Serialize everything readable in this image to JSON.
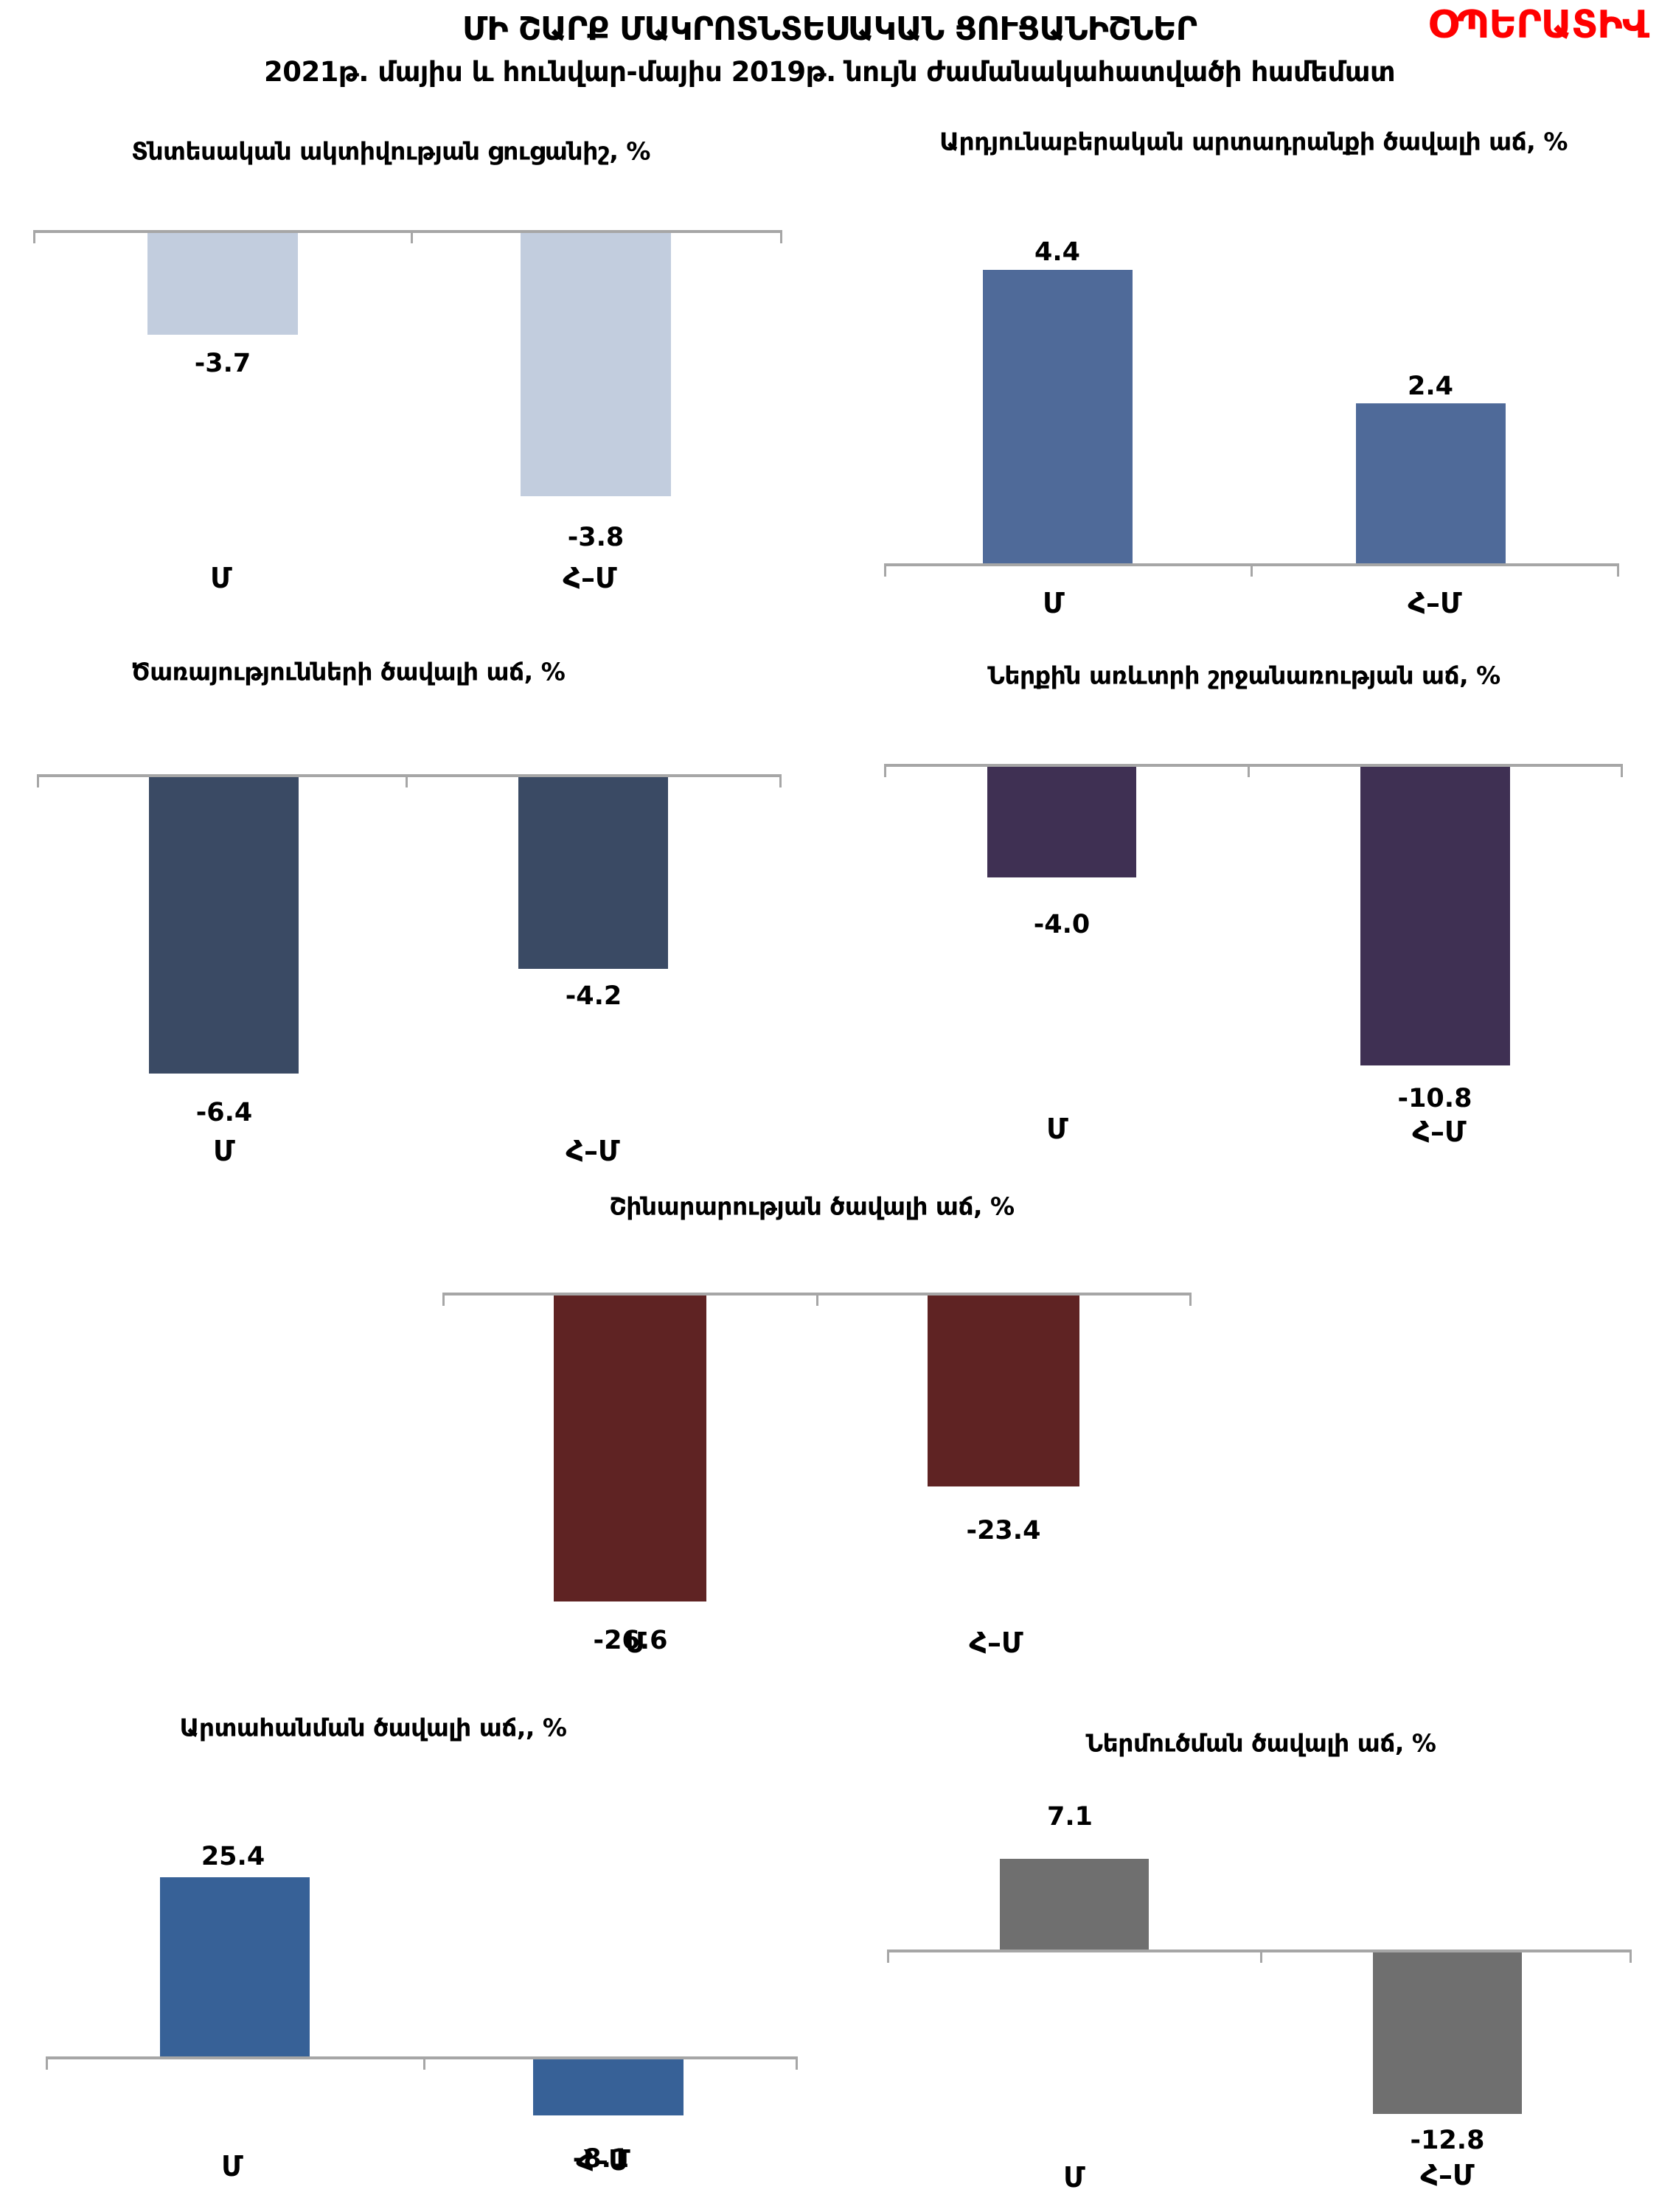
{
  "header": {
    "title": "ՄԻ ՇԱՐՔ ՄԱԿՐՈՏՆՏԵՍԱԿԱՆ ՑՈՒՑԱՆԻՇՆԵՐ",
    "subtitle": "2021թ. մայիս և հունվար-մայիս 2019թ. նույն ժամանակահատվածի համեմատ",
    "badge": "ՕՊԵՐԱՏԻՎ",
    "badge_color": "#ff0000"
  },
  "colors": {
    "axis": "#a6a6a6",
    "text": "#000000",
    "background": "#ffffff"
  },
  "chart_data": [
    {
      "type": "bar",
      "title": "Տնտեսական ակտիվության ցուցանիշ, %",
      "categories": [
        "Մ",
        "Հ–Մ"
      ],
      "values": [
        -3.7,
        -3.8
      ],
      "value_labels": [
        "-3.7",
        "-3.8"
      ],
      "bar_color": "#c2cdde",
      "grid": false,
      "legend": false
    },
    {
      "type": "bar",
      "title": "Արդյունաբերական արտադրանքի ծավալի աճ, %",
      "categories": [
        "Մ",
        "Հ–Մ"
      ],
      "values": [
        4.4,
        2.4
      ],
      "value_labels": [
        "4.4",
        "2.4"
      ],
      "bar_color": "#4f6a99",
      "grid": false,
      "legend": false
    },
    {
      "type": "bar",
      "title": "Ծառայությունների ծավալի աճ, %",
      "categories": [
        "Մ",
        "Հ–Մ"
      ],
      "values": [
        -6.4,
        -4.2
      ],
      "value_labels": [
        "-6.4",
        "-4.2"
      ],
      "bar_color": "#3a4a64",
      "grid": false,
      "legend": false
    },
    {
      "type": "bar",
      "title": "Ներքին առևտրի շրջանառության աճ, %",
      "categories": [
        "Մ",
        "Հ–Մ"
      ],
      "values": [
        -4.0,
        -10.8
      ],
      "value_labels": [
        "-4.0",
        "-10.8"
      ],
      "bar_color": "#3f3053",
      "grid": false,
      "legend": false
    },
    {
      "type": "bar",
      "title": "Շինարարության ծավալի աճ, %",
      "categories": [
        "Մ",
        "Հ–Մ"
      ],
      "values": [
        -26.6,
        -23.4
      ],
      "value_labels": [
        "-26.6",
        "-23.4"
      ],
      "bar_color": "#5f2323",
      "grid": false,
      "legend": false
    },
    {
      "type": "bar",
      "title": "Արտահանման ծավալի աճ,, %",
      "categories": [
        "Մ",
        "Հ–Մ"
      ],
      "values": [
        25.4,
        -8.1
      ],
      "value_labels": [
        "25.4",
        "-8.1"
      ],
      "bar_color": "#376197",
      "grid": false,
      "legend": false
    },
    {
      "type": "bar",
      "title": "Ներմուծման ծավալի աճ, %",
      "categories": [
        "Մ",
        "Հ–Մ"
      ],
      "values": [
        7.1,
        -12.8
      ],
      "value_labels": [
        "7.1",
        "-12.8"
      ],
      "bar_color": "#6f6f6f",
      "grid": false,
      "legend": false
    }
  ]
}
